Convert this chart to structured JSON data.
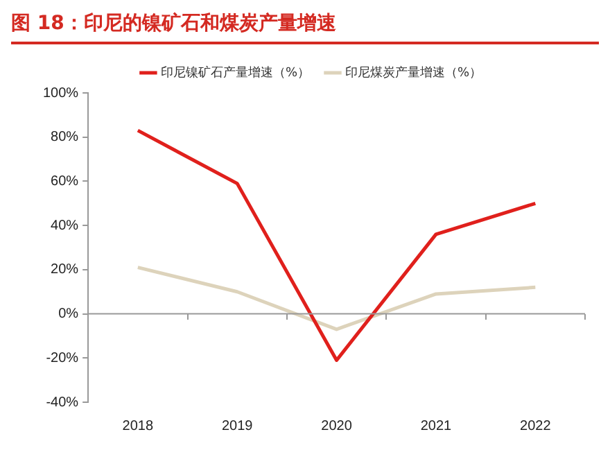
{
  "chart_data": {
    "type": "line",
    "title": "图 18：印尼的镍矿石和煤炭产量增速",
    "categories": [
      "2018",
      "2019",
      "2020",
      "2021",
      "2022"
    ],
    "series": [
      {
        "name": "印尼镍矿石产量增速（%）",
        "color": "#e0201c",
        "values": [
          83,
          59,
          -21,
          36,
          50
        ]
      },
      {
        "name": "印尼煤炭产量增速（%）",
        "color": "#ddd3bb",
        "values": [
          21,
          10,
          -7,
          9,
          12
        ]
      }
    ],
    "ylim": [
      -40,
      100
    ],
    "yticks": [
      {
        "value": -40,
        "label": "-40%"
      },
      {
        "value": -20,
        "label": "-20%"
      },
      {
        "value": 0,
        "label": "0%"
      },
      {
        "value": 20,
        "label": "20%"
      },
      {
        "value": 40,
        "label": "40%"
      },
      {
        "value": 60,
        "label": "60%"
      },
      {
        "value": 80,
        "label": "80%"
      },
      {
        "value": 100,
        "label": "100%"
      }
    ],
    "ref_lines": [
      {
        "axis": "y",
        "value": 0,
        "color": "#999999"
      }
    ],
    "grid": false,
    "legend": "top",
    "marker": "none",
    "line_style": "solid"
  }
}
